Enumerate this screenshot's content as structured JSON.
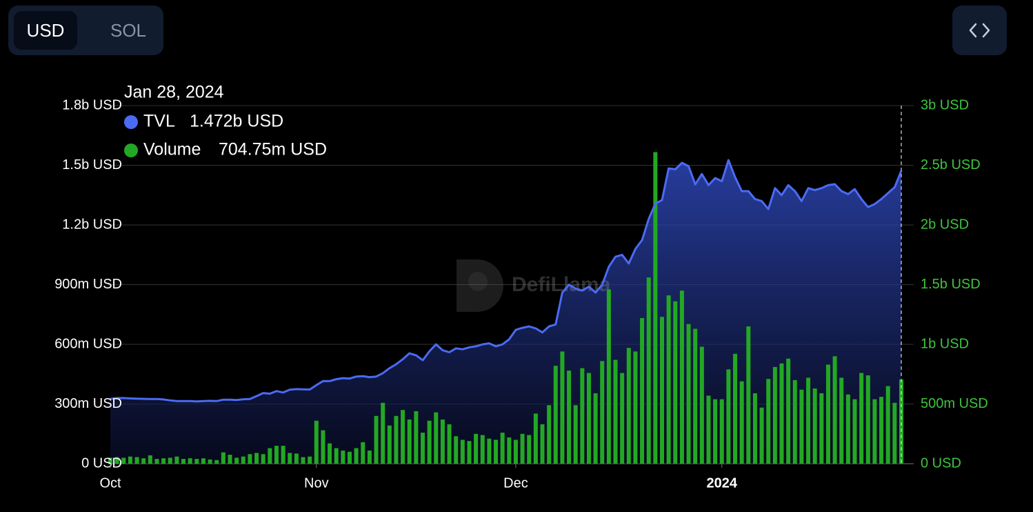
{
  "toolbar": {
    "options": [
      "USD",
      "SOL"
    ]
  },
  "chart_data": {
    "type": "bar-line",
    "watermark": "DefiLlama",
    "x": [
      "2023-10-01",
      "2023-10-02",
      "2023-10-03",
      "2023-10-04",
      "2023-10-05",
      "2023-10-06",
      "2023-10-07",
      "2023-10-08",
      "2023-10-09",
      "2023-10-10",
      "2023-10-11",
      "2023-10-12",
      "2023-10-13",
      "2023-10-14",
      "2023-10-15",
      "2023-10-16",
      "2023-10-17",
      "2023-10-18",
      "2023-10-19",
      "2023-10-20",
      "2023-10-21",
      "2023-10-22",
      "2023-10-23",
      "2023-10-24",
      "2023-10-25",
      "2023-10-26",
      "2023-10-27",
      "2023-10-28",
      "2023-10-29",
      "2023-10-30",
      "2023-10-31",
      "2023-11-01",
      "2023-11-02",
      "2023-11-03",
      "2023-11-04",
      "2023-11-05",
      "2023-11-06",
      "2023-11-07",
      "2023-11-08",
      "2023-11-09",
      "2023-11-10",
      "2023-11-11",
      "2023-11-12",
      "2023-11-13",
      "2023-11-14",
      "2023-11-15",
      "2023-11-16",
      "2023-11-17",
      "2023-11-18",
      "2023-11-19",
      "2023-11-20",
      "2023-11-21",
      "2023-11-22",
      "2023-11-23",
      "2023-11-24",
      "2023-11-25",
      "2023-11-26",
      "2023-11-27",
      "2023-11-28",
      "2023-11-29",
      "2023-11-30",
      "2023-12-01",
      "2023-12-02",
      "2023-12-03",
      "2023-12-04",
      "2023-12-05",
      "2023-12-06",
      "2023-12-07",
      "2023-12-08",
      "2023-12-09",
      "2023-12-10",
      "2023-12-11",
      "2023-12-12",
      "2023-12-13",
      "2023-12-14",
      "2023-12-15",
      "2023-12-16",
      "2023-12-17",
      "2023-12-18",
      "2023-12-19",
      "2023-12-20",
      "2023-12-21",
      "2023-12-22",
      "2023-12-23",
      "2023-12-24",
      "2023-12-25",
      "2023-12-26",
      "2023-12-27",
      "2023-12-28",
      "2023-12-29",
      "2023-12-30",
      "2023-12-31",
      "2024-01-01",
      "2024-01-02",
      "2024-01-03",
      "2024-01-04",
      "2024-01-05",
      "2024-01-06",
      "2024-01-07",
      "2024-01-08",
      "2024-01-09",
      "2024-01-10",
      "2024-01-11",
      "2024-01-12",
      "2024-01-13",
      "2024-01-14",
      "2024-01-15",
      "2024-01-16",
      "2024-01-17",
      "2024-01-18",
      "2024-01-19",
      "2024-01-20",
      "2024-01-21",
      "2024-01-22",
      "2024-01-23",
      "2024-01-24",
      "2024-01-25",
      "2024-01-26",
      "2024-01-27",
      "2024-01-28"
    ],
    "xlim": [
      "2023-10-01",
      "2024-01-28"
    ],
    "xticks": [
      {
        "value": "2023-10-01",
        "label": "Oct"
      },
      {
        "value": "2023-11-01",
        "label": "Nov"
      },
      {
        "value": "2023-12-01",
        "label": "Dec"
      },
      {
        "value": "2024-01-01",
        "label": "2024"
      }
    ],
    "ylim": [
      0,
      1800000000
    ],
    "yticks": [
      {
        "value": 0,
        "label": "0 USD"
      },
      {
        "value": 300000000,
        "label": "300m USD"
      },
      {
        "value": 600000000,
        "label": "600m USD"
      },
      {
        "value": 900000000,
        "label": "900m USD"
      },
      {
        "value": 1200000000,
        "label": "1.2b USD"
      },
      {
        "value": 1500000000,
        "label": "1.5b USD"
      },
      {
        "value": 1800000000,
        "label": "1.8b USD"
      }
    ],
    "y2lim": [
      0,
      3000000000
    ],
    "y2ticks": [
      {
        "value": 0,
        "label": "0 USD"
      },
      {
        "value": 500000000,
        "label": "500m USD"
      },
      {
        "value": 1000000000,
        "label": "1b USD"
      },
      {
        "value": 1500000000,
        "label": "1.5b USD"
      },
      {
        "value": 2000000000,
        "label": "2b USD"
      },
      {
        "value": 2500000000,
        "label": "2.5b USD"
      },
      {
        "value": 3000000000,
        "label": "3b USD"
      }
    ],
    "grid": true,
    "series": [
      {
        "name": "TVL",
        "type": "line",
        "color": "#4b6bf5",
        "values": [
          326000000,
          330000000,
          330000000,
          328000000,
          327000000,
          326000000,
          325000000,
          325000000,
          323000000,
          318000000,
          315000000,
          315000000,
          315000000,
          313000000,
          315000000,
          316000000,
          315000000,
          322000000,
          322000000,
          320000000,
          324000000,
          325000000,
          340000000,
          355000000,
          352000000,
          365000000,
          358000000,
          372000000,
          375000000,
          374000000,
          373000000,
          395000000,
          415000000,
          415000000,
          425000000,
          430000000,
          428000000,
          438000000,
          440000000,
          435000000,
          438000000,
          455000000,
          480000000,
          500000000,
          525000000,
          555000000,
          545000000,
          520000000,
          565000000,
          600000000,
          570000000,
          560000000,
          580000000,
          575000000,
          585000000,
          590000000,
          600000000,
          605000000,
          590000000,
          600000000,
          625000000,
          673000000,
          683000000,
          690000000,
          680000000,
          660000000,
          690000000,
          700000000,
          860000000,
          900000000,
          880000000,
          870000000,
          890000000,
          860000000,
          900000000,
          990000000,
          1040000000,
          1050000000,
          1006000000,
          1080000000,
          1124000000,
          1230000000,
          1307000000,
          1325000000,
          1484000000,
          1480000000,
          1512000000,
          1495000000,
          1404000000,
          1456000000,
          1400000000,
          1436000000,
          1420000000,
          1526000000,
          1440000000,
          1370000000,
          1370000000,
          1330000000,
          1320000000,
          1280000000,
          1385000000,
          1350000000,
          1400000000,
          1370000000,
          1320000000,
          1385000000,
          1375000000,
          1385000000,
          1400000000,
          1405000000,
          1370000000,
          1355000000,
          1380000000,
          1330000000,
          1290000000,
          1305000000,
          1330000000,
          1360000000,
          1390000000,
          1472000000
        ]
      },
      {
        "name": "Volume",
        "type": "bar",
        "axis": "y2",
        "color": "#23a823",
        "values": [
          50000000,
          55000000,
          50000000,
          60000000,
          55000000,
          45000000,
          70000000,
          40000000,
          45000000,
          50000000,
          60000000,
          40000000,
          45000000,
          40000000,
          45000000,
          35000000,
          30000000,
          95000000,
          75000000,
          50000000,
          60000000,
          80000000,
          90000000,
          80000000,
          130000000,
          150000000,
          150000000,
          90000000,
          85000000,
          55000000,
          60000000,
          360000000,
          280000000,
          170000000,
          130000000,
          110000000,
          100000000,
          130000000,
          180000000,
          110000000,
          400000000,
          510000000,
          320000000,
          400000000,
          450000000,
          370000000,
          440000000,
          260000000,
          360000000,
          430000000,
          370000000,
          330000000,
          230000000,
          200000000,
          190000000,
          250000000,
          240000000,
          210000000,
          200000000,
          260000000,
          220000000,
          200000000,
          250000000,
          240000000,
          420000000,
          330000000,
          490000000,
          820000000,
          940000000,
          780000000,
          490000000,
          800000000,
          760000000,
          590000000,
          860000000,
          1460000000,
          870000000,
          760000000,
          970000000,
          940000000,
          1220000000,
          1560000000,
          2610000000,
          1230000000,
          1410000000,
          1360000000,
          1450000000,
          1170000000,
          1130000000,
          980000000,
          570000000,
          540000000,
          540000000,
          790000000,
          920000000,
          690000000,
          1150000000,
          590000000,
          470000000,
          710000000,
          810000000,
          840000000,
          880000000,
          700000000,
          620000000,
          720000000,
          630000000,
          590000000,
          830000000,
          900000000,
          720000000,
          580000000,
          540000000,
          760000000,
          740000000,
          540000000,
          560000000,
          650000000,
          510000000,
          704750000
        ]
      }
    ],
    "tooltip": {
      "date": "Jan 28, 2024",
      "labels": [
        "1.472b USD",
        "704.75m USD"
      ]
    }
  }
}
